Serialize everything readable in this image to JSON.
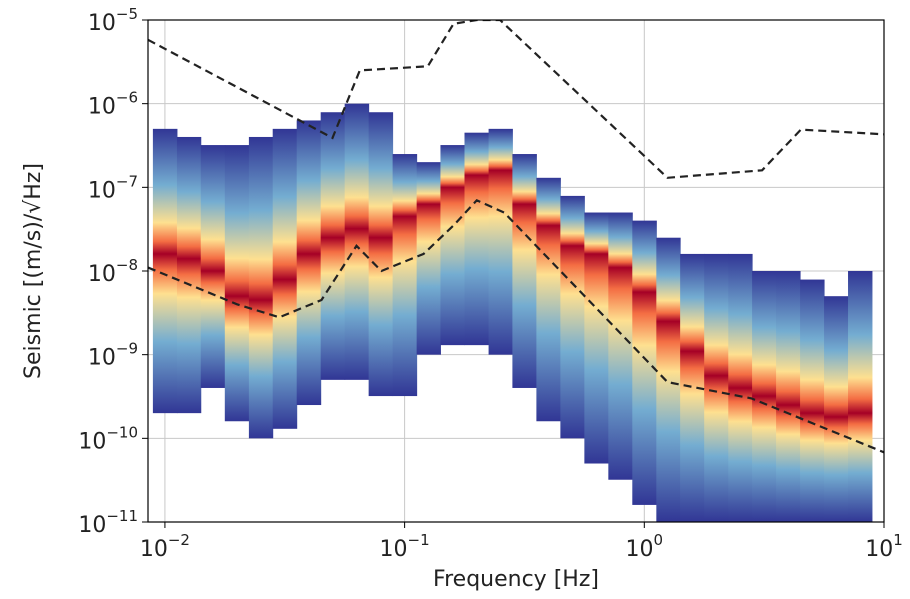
{
  "chart_data": {
    "type": "density",
    "x_label": "Frequency [Hz]",
    "y_label": "Seismic [(m/s)/√Hz]",
    "log_x": true,
    "log_y": true,
    "grid": true,
    "xlim": [
      0.0085,
      10
    ],
    "ylim": [
      1e-11,
      1e-05
    ],
    "xticks": [
      {
        "value": 0.01,
        "label": "10",
        "exponent": "−2"
      },
      {
        "value": 0.1,
        "label": "10",
        "exponent": "−1"
      },
      {
        "value": 1,
        "label": "10",
        "exponent": "0"
      },
      {
        "value": 10,
        "label": "10",
        "exponent": "1"
      }
    ],
    "yticks": [
      {
        "value": 1e-11,
        "label": "10",
        "exponent": "−11"
      },
      {
        "value": 1e-10,
        "label": "10",
        "exponent": "−10"
      },
      {
        "value": 1e-09,
        "label": "10",
        "exponent": "−9"
      },
      {
        "value": 1e-08,
        "label": "10",
        "exponent": "−8"
      },
      {
        "value": 1e-07,
        "label": "10",
        "exponent": "−7"
      },
      {
        "value": 1e-06,
        "label": "10",
        "exponent": "−6"
      },
      {
        "value": 1e-05,
        "label": "10",
        "exponent": "−5"
      }
    ],
    "density": {
      "x": [
        0.01,
        0.0126,
        0.0158,
        0.02,
        0.0251,
        0.0316,
        0.0398,
        0.0501,
        0.0631,
        0.0794,
        0.1,
        0.126,
        0.158,
        0.2,
        0.251,
        0.316,
        0.398,
        0.501,
        0.631,
        0.794,
        1,
        1.26,
        1.58,
        2,
        2.51,
        3.16,
        3.98,
        5.01,
        6.31,
        7.94
      ],
      "mode": [
        1.6e-08,
        1.4e-08,
        1e-08,
        5e-09,
        4.5e-09,
        7.9e-09,
        1.6e-08,
        2.5e-08,
        3.2e-08,
        2.5e-08,
        4.5e-08,
        6.3e-08,
        1e-07,
        1.4e-07,
        1.6e-07,
        6.3e-08,
        3.5e-08,
        2e-08,
        1.6e-08,
        1.1e-08,
        5.6e-09,
        2.5e-09,
        1.1e-09,
        5.6e-10,
        4e-10,
        3.2e-10,
        2.5e-10,
        2e-10,
        1.8e-10,
        2e-10
      ],
      "low": [
        2e-10,
        2e-10,
        4e-10,
        1.6e-10,
        1e-10,
        1.3e-10,
        2.5e-10,
        5e-10,
        5e-10,
        3.2e-10,
        3.2e-10,
        1e-09,
        1.3e-09,
        1.3e-09,
        1e-09,
        4e-10,
        1.6e-10,
        1e-10,
        5e-11,
        3.2e-11,
        1.6e-11,
        1e-11,
        1e-11,
        1e-11,
        1e-11,
        1e-11,
        1e-11,
        1e-11,
        1e-11,
        1e-11
      ],
      "high": [
        5e-07,
        4e-07,
        3.2e-07,
        3.2e-07,
        4e-07,
        5e-07,
        6.3e-07,
        7.9e-07,
        1e-06,
        7.9e-07,
        2.5e-07,
        2e-07,
        3.2e-07,
        4.5e-07,
        5e-07,
        2.5e-07,
        1.3e-07,
        7.9e-08,
        5e-08,
        5e-08,
        4e-08,
        2.5e-08,
        1.6e-08,
        1.6e-08,
        1.6e-08,
        1e-08,
        1e-08,
        7.9e-09,
        5e-09,
        1e-08
      ],
      "colors": [
        "#313695",
        "#74add1",
        "#fee090",
        "#f46d43",
        "#a50026"
      ]
    },
    "series": [
      {
        "color": "#222222",
        "dashed": true,
        "x": [
          0.0085,
          0.05,
          0.065,
          0.125,
          0.16,
          0.2,
          0.25,
          1.25,
          3.1,
          4.5,
          10
        ],
        "values": [
          5.8e-06,
          3.9e-07,
          2.5e-06,
          2.8e-06,
          9e-06,
          1e-05,
          1e-05,
          1.3e-07,
          1.6e-07,
          4.9e-07,
          4.3e-07
        ]
      },
      {
        "color": "#222222",
        "dashed": true,
        "x": [
          0.0085,
          0.02,
          0.03,
          0.045,
          0.063,
          0.08,
          0.12,
          0.16,
          0.2,
          0.26,
          1.25,
          2.8,
          10
        ],
        "values": [
          1.1e-08,
          4e-09,
          2.8e-09,
          4.5e-09,
          2e-08,
          1e-08,
          1.6e-08,
          3.5e-08,
          7e-08,
          5e-08,
          4.7e-10,
          3e-10,
          6.8e-11
        ]
      }
    ]
  }
}
